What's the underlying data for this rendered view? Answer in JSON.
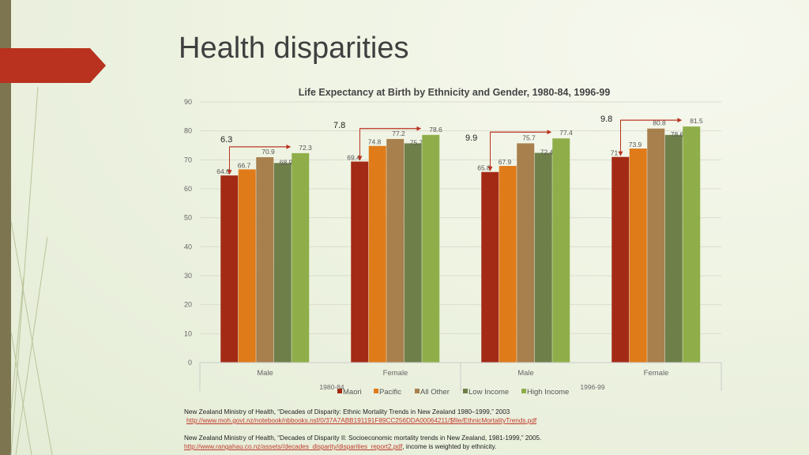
{
  "slide": {
    "title": "Health disparities"
  },
  "colors": {
    "accent": "#b8321f",
    "sidebar": "#7d7550"
  },
  "chart_data": {
    "type": "bar",
    "title": "Life Expectancy at Birth by Ethnicity and Gender, 1980-84, 1996-99",
    "groups": [
      {
        "label": "1980-84",
        "categories": [
          "Male",
          "Female"
        ]
      },
      {
        "label": "1996-99",
        "categories": [
          "Male",
          "Female"
        ]
      }
    ],
    "categories": [
      "Male",
      "Female",
      "Male",
      "Female"
    ],
    "series": [
      {
        "name": "Maori",
        "color": "#a32b16",
        "values": [
          64.6,
          69.4,
          65.8,
          71
        ]
      },
      {
        "name": "Pacific",
        "color": "#e07b1a",
        "values": [
          66.7,
          74.8,
          67.9,
          73.9
        ]
      },
      {
        "name": "All Other",
        "color": "#a8804e",
        "values": [
          70.9,
          77.2,
          75.7,
          80.8
        ]
      },
      {
        "name": "Low Income",
        "color": "#6e7f4a",
        "values": [
          68.9,
          75.7,
          72.4,
          78.6
        ]
      },
      {
        "name": "High Income",
        "color": "#8fae4a",
        "values": [
          72.3,
          78.6,
          77.4,
          81.5
        ]
      }
    ],
    "ylim": [
      0,
      90
    ],
    "yticks": [
      0,
      10,
      20,
      30,
      40,
      50,
      60,
      70,
      80,
      90
    ],
    "grid": true,
    "legend": "bottom",
    "gap_annotations": [
      "6.3",
      "7.8",
      "9.9",
      "9.8"
    ]
  },
  "references": [
    {
      "text": "New Zealand Ministry of Health, “Decades of Disparity: Ethnic Mortality Trends in New Zealand 1980–1999,” 2003",
      "link": "http://www.moh.govt.nz/notebook/nbbooks.nsf/0/37A7ABB191191F89CC256DDA00064211/$file/EthnicMortalityTrends.pdf",
      "after": ""
    },
    {
      "text": "New Zealand Ministry of Health, “Decades of Disparity II: Socioeconomic mortality trends in New Zealand, 1981-1999,” 2005.",
      "link": "http://www.rangahau.co.nz/assets//decades_disparity/disparities_report2.pdf",
      "after": ", income is weighted by ethnicity."
    }
  ]
}
